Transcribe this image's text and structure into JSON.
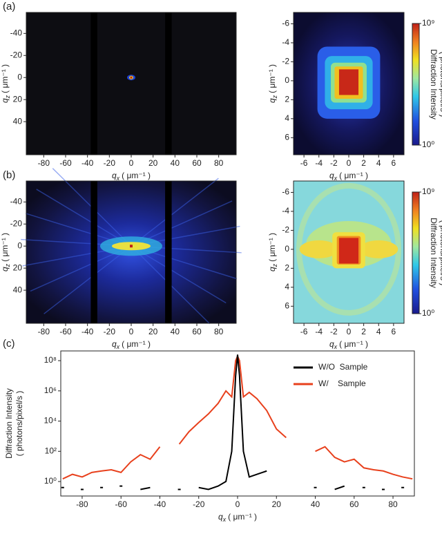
{
  "panel_labels": [
    "(a)",
    "(b)",
    "(c)"
  ],
  "chart_data": [
    {
      "type": "heatmap",
      "xlim": [
        -96,
        96
      ],
      "ylim": [
        -59,
        70
      ],
      "xticks": [
        -80,
        -60,
        -40,
        -20,
        0,
        20,
        40,
        60,
        80
      ],
      "yticks": [
        -40,
        -20,
        0,
        20,
        40
      ],
      "xlabel": {
        "symbol": "q",
        "subscript": "x",
        "unit": "( μm⁻¹ )"
      },
      "ylabel": {
        "symbol": "q",
        "subscript": "z",
        "unit": "( μm⁻¹ )"
      }
    },
    {
      "type": "heatmap",
      "xlim": [
        -7.4,
        7.4
      ],
      "ylim": [
        -7.2,
        7.8
      ],
      "xticks": [
        -6,
        -4,
        -2,
        0,
        2,
        4,
        6
      ],
      "yticks": [
        -6,
        -4,
        -2,
        0,
        2,
        4,
        6
      ],
      "xlabel": {
        "symbol": "q",
        "subscript": "x",
        "unit": "( μm⁻¹ )"
      },
      "ylabel": {
        "symbol": "q",
        "subscript": "z",
        "unit": "( μm⁻¹ )"
      },
      "colorbar": {
        "lim": [
          1,
          1000000000
        ],
        "log": true,
        "ticks": [
          {
            "value": 1,
            "label": "10⁰"
          },
          {
            "value": 1000000000,
            "label": "10⁹"
          }
        ],
        "label": [
          "Diffraction Intensity",
          "( photons/pixel/s )"
        ]
      }
    },
    {
      "type": "heatmap",
      "xlim": [
        -96,
        96
      ],
      "ylim": [
        -59,
        70
      ],
      "xticks": [
        -80,
        -60,
        -40,
        -20,
        0,
        20,
        40,
        60,
        80
      ],
      "yticks": [
        -40,
        -20,
        0,
        20,
        40
      ],
      "xlabel": {
        "symbol": "q",
        "subscript": "x",
        "unit": "( μm⁻¹ )"
      },
      "ylabel": {
        "symbol": "q",
        "subscript": "z",
        "unit": "( μm⁻¹ )"
      }
    },
    {
      "type": "heatmap",
      "xlim": [
        -7.4,
        7.4
      ],
      "ylim": [
        -7.2,
        7.8
      ],
      "xticks": [
        -6,
        -4,
        -2,
        0,
        2,
        4,
        6
      ],
      "yticks": [
        -6,
        -4,
        -2,
        0,
        2,
        4,
        6
      ],
      "xlabel": {
        "symbol": "q",
        "subscript": "x",
        "unit": "( μm⁻¹ )"
      },
      "ylabel": {
        "symbol": "q",
        "subscript": "z",
        "unit": "( μm⁻¹ )"
      },
      "colorbar": {
        "lim": [
          1,
          1000000000
        ],
        "log": true,
        "ticks": [
          {
            "value": 1,
            "label": "10⁰"
          },
          {
            "value": 1000000000,
            "label": "10⁹"
          }
        ],
        "label": [
          "Diffraction Intensity",
          "( photons/pixel/s )"
        ]
      }
    },
    {
      "type": "line",
      "log_y": true,
      "legend": "upper right",
      "xlim": [
        -91,
        91
      ],
      "ylim": [
        0.11,
        440000000
      ],
      "xticks": [
        -80,
        -60,
        -40,
        -20,
        0,
        20,
        40,
        60,
        80
      ],
      "yticks": [
        {
          "value": 1,
          "label": "10⁰"
        },
        {
          "value": 100,
          "label": "10²"
        },
        {
          "value": 10000,
          "label": "10⁴"
        },
        {
          "value": 1000000,
          "label": "10⁶"
        },
        {
          "value": 100000000,
          "label": "10⁸"
        }
      ],
      "xlabel": {
        "symbol": "q",
        "subscript": "x",
        "unit": "( μm⁻¹ )"
      },
      "ylabel": [
        "Diffraction Intensity",
        "( photons/pixel/s )"
      ],
      "x": [
        -90,
        -85,
        -80,
        -75,
        -70,
        -65,
        -60,
        -55,
        -50,
        -45,
        -40,
        -37,
        -34,
        -30,
        -25,
        -20,
        -15,
        -10,
        -6,
        -3,
        -1,
        0,
        1,
        3,
        6,
        10,
        15,
        20,
        25,
        30,
        34,
        37,
        40,
        45,
        50,
        55,
        60,
        65,
        70,
        75,
        80,
        85,
        90
      ],
      "series": [
        {
          "name": "W/O  Sample",
          "color": "#000000",
          "values": [
            0.4,
            null,
            0.3,
            null,
            0.4,
            null,
            0.5,
            null,
            0.3,
            0.4,
            null,
            null,
            null,
            0.3,
            null,
            0.4,
            0.3,
            0.5,
            1,
            100,
            10000000,
            250000000,
            10000000,
            100,
            2,
            3,
            5,
            null,
            null,
            null,
            null,
            null,
            0.4,
            null,
            0.3,
            0.5,
            null,
            0.4,
            null,
            0.3,
            null,
            0.4,
            null
          ]
        },
        {
          "name": "W/    Sample",
          "color": "#e8401c",
          "values": [
            1.5,
            3,
            2,
            4,
            5,
            6,
            4,
            20,
            60,
            30,
            200,
            null,
            null,
            300,
            2000,
            8000,
            30000,
            150000,
            1000000,
            400000,
            100000000,
            200000000,
            100000000,
            400000,
            800000,
            300000,
            50000,
            3000,
            800,
            null,
            null,
            null,
            100,
            200,
            40,
            20,
            30,
            8,
            6,
            5,
            3,
            2,
            1.5
          ]
        }
      ]
    }
  ]
}
